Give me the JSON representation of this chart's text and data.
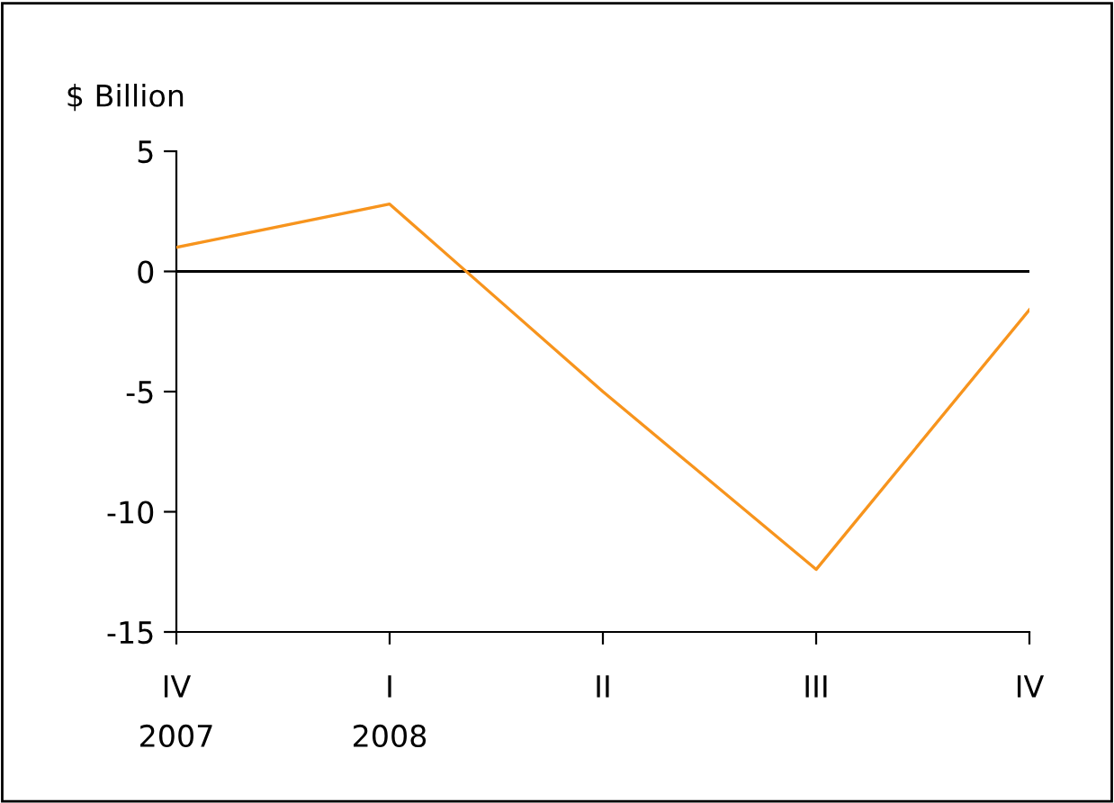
{
  "chart_data": {
    "type": "line",
    "ylabel": "$ Billion",
    "categories": [
      "IV\n2007",
      "I\n2008",
      "II",
      "III",
      "IV"
    ],
    "series": [
      {
        "color": "#f7941d",
        "values": [
          1.0,
          2.8,
          -5.0,
          -12.4,
          -1.6
        ]
      }
    ],
    "ylim": [
      -15,
      5
    ],
    "yticks": [
      -15,
      -10,
      -5,
      0,
      5
    ],
    "ref_lines": [
      {
        "axis": "y",
        "value": 0,
        "color": "#000000"
      }
    ],
    "grid": false,
    "legend": false,
    "marker": "none",
    "line_style": "solid"
  }
}
